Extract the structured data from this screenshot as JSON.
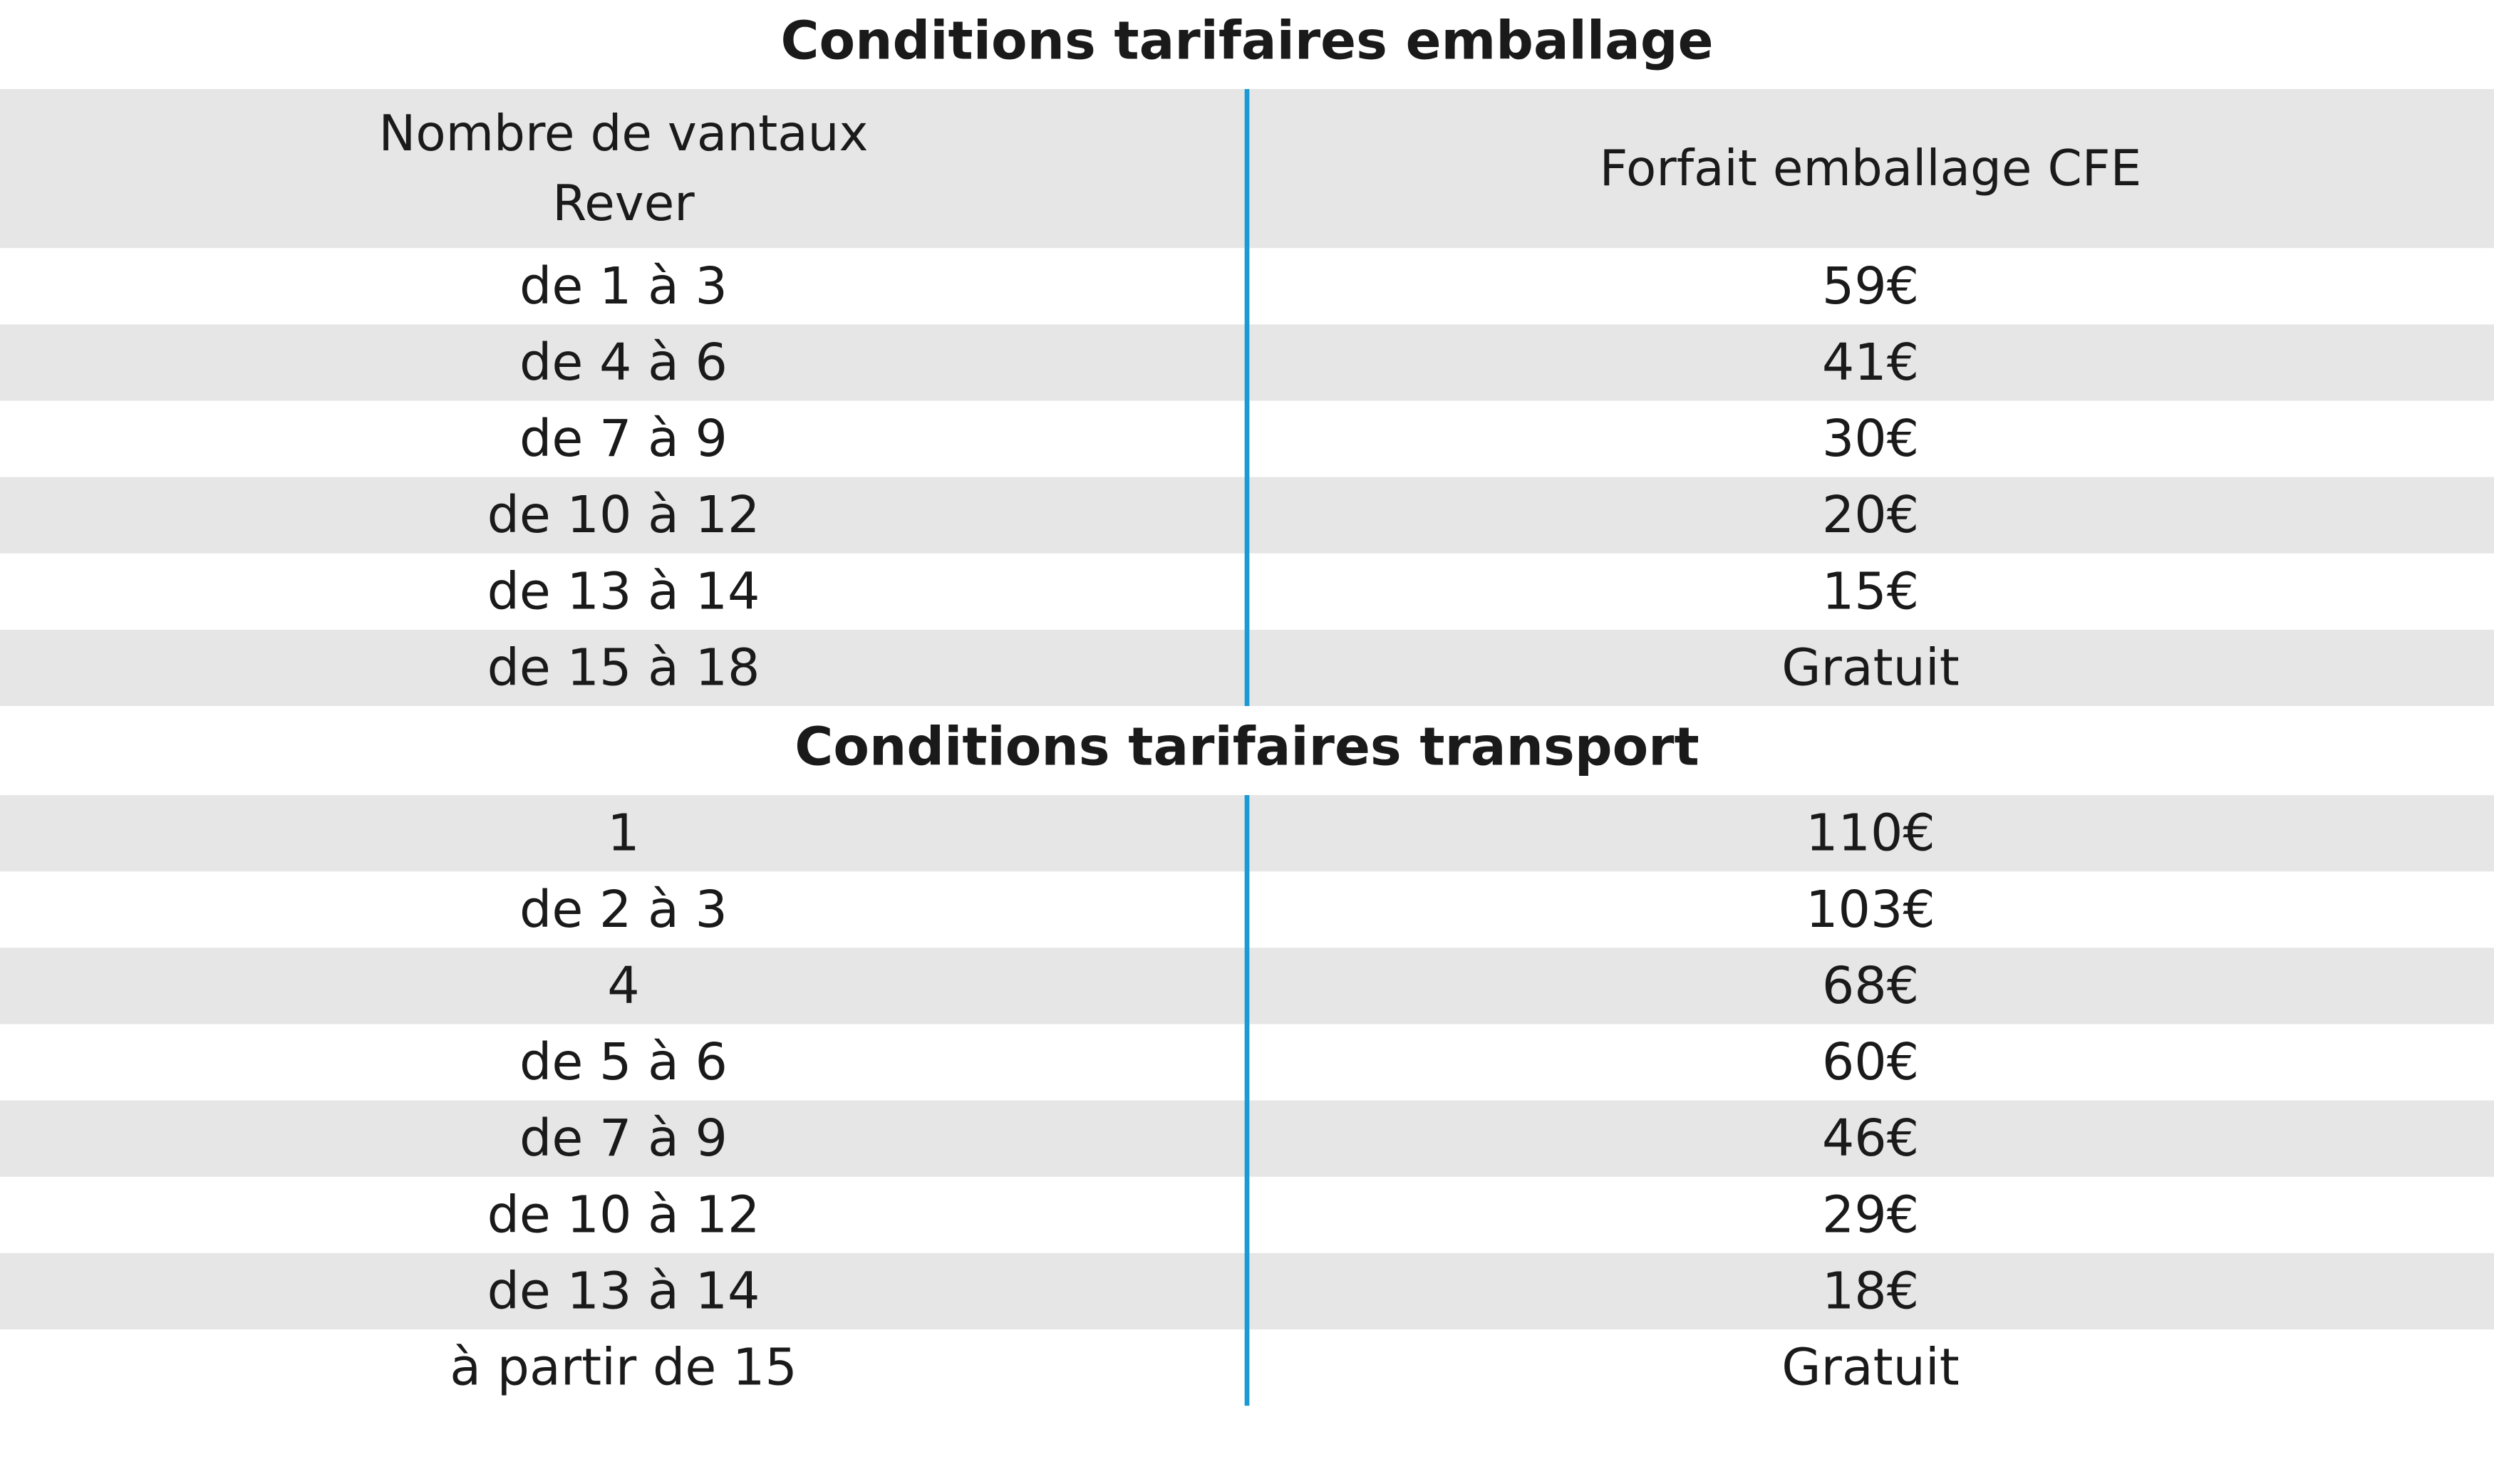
{
  "emballage": {
    "title": "Conditions tarifaires emballage",
    "header": [
      [
        "Nombre de vantaux",
        "Rever"
      ],
      "Forfait emballage CFE"
    ],
    "rows": [
      [
        "de 1 à 3",
        "59€"
      ],
      [
        "de 4 à 6",
        "41€"
      ],
      [
        "de 7 à 9",
        "30€"
      ],
      [
        "de 10 à 12",
        "20€"
      ],
      [
        "de 13 à 14",
        "15€"
      ],
      [
        "de 15 à 18",
        "Gratuit"
      ]
    ]
  },
  "transport": {
    "title": "Conditions tarifaires transport",
    "rows": [
      [
        "1",
        "110€"
      ],
      [
        "de 2 à 3",
        "103€"
      ],
      [
        "4",
        "68€"
      ],
      [
        "de 5 à 6",
        "60€"
      ],
      [
        "de 7 à 9",
        "46€"
      ],
      [
        "de 10 à 12",
        "29€"
      ],
      [
        "de 13 à 14",
        "18€"
      ],
      [
        "à partir de 15",
        "Gratuit"
      ]
    ]
  }
}
